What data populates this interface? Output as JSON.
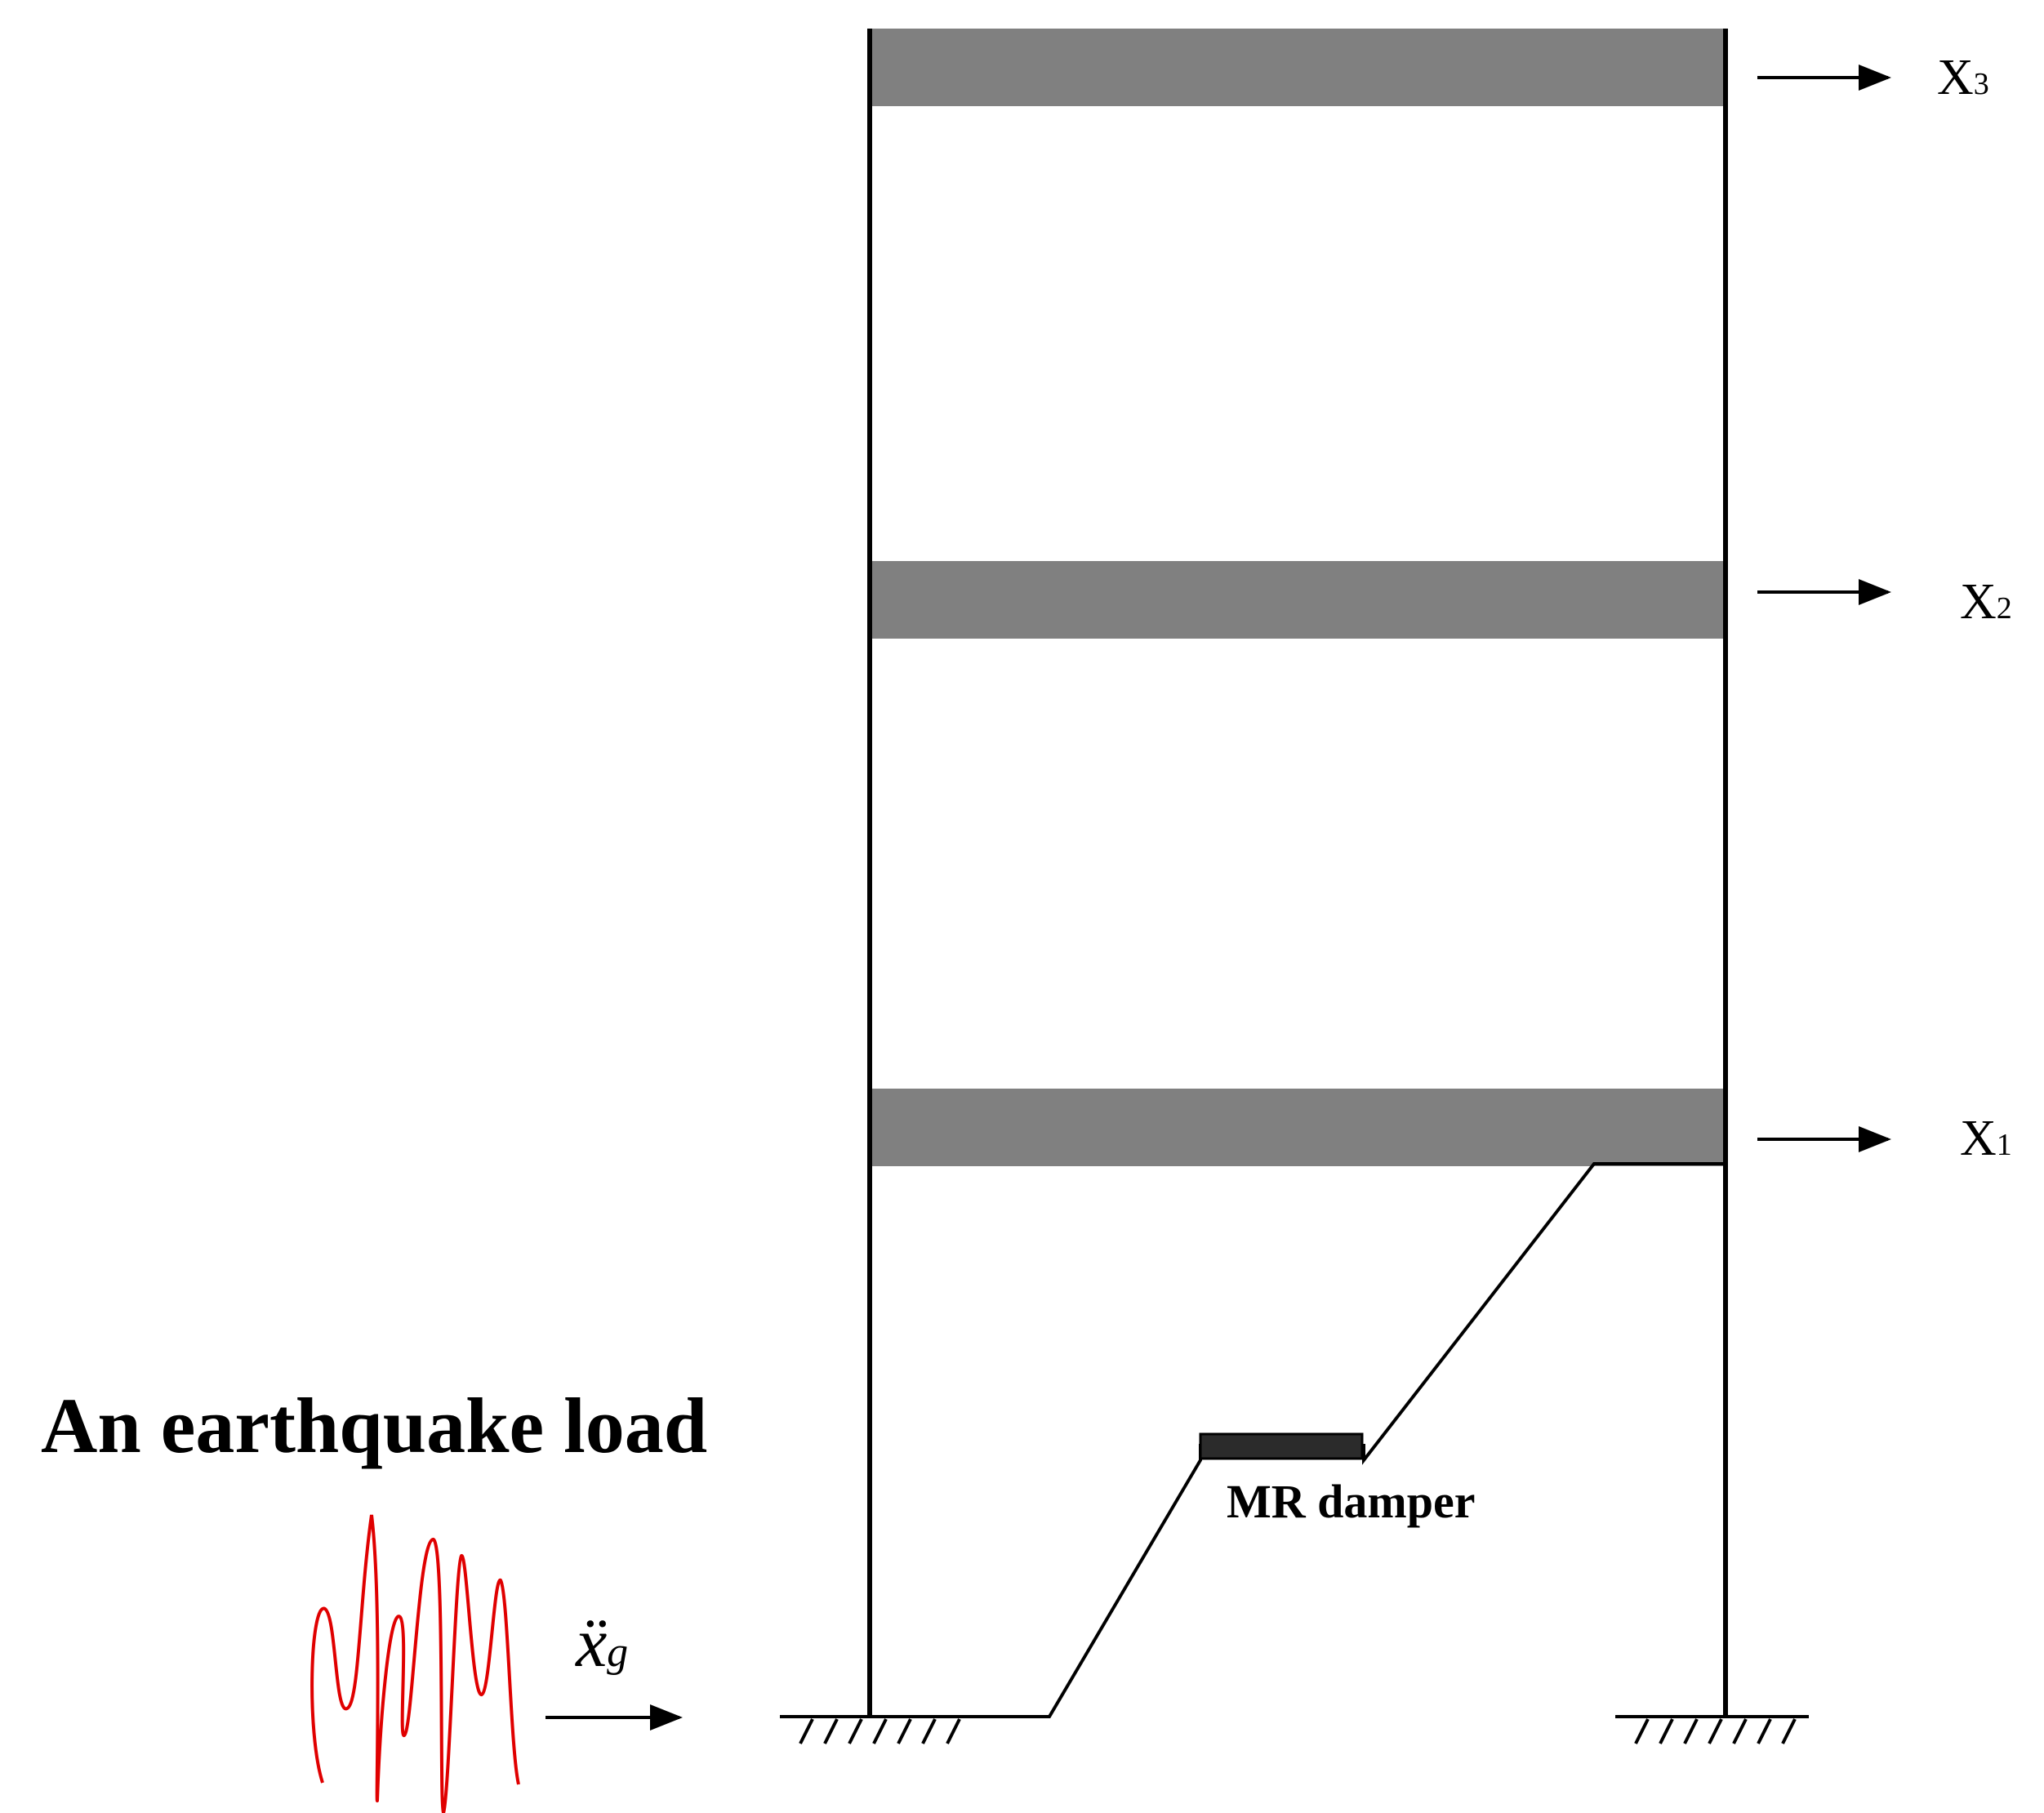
{
  "labels": {
    "x3": "X",
    "x3_sub": "3",
    "x2": "X",
    "x2_sub": "2",
    "x1": "X",
    "x1_sub": "1",
    "damper": "MR damper",
    "load_title": "An earthquake load",
    "ground_accel": "ẍ",
    "ground_accel_sub": "g"
  },
  "colors": {
    "floor": "#808080",
    "damper": "#2b2b2b",
    "line": "#000000",
    "signal": "#e00000"
  }
}
